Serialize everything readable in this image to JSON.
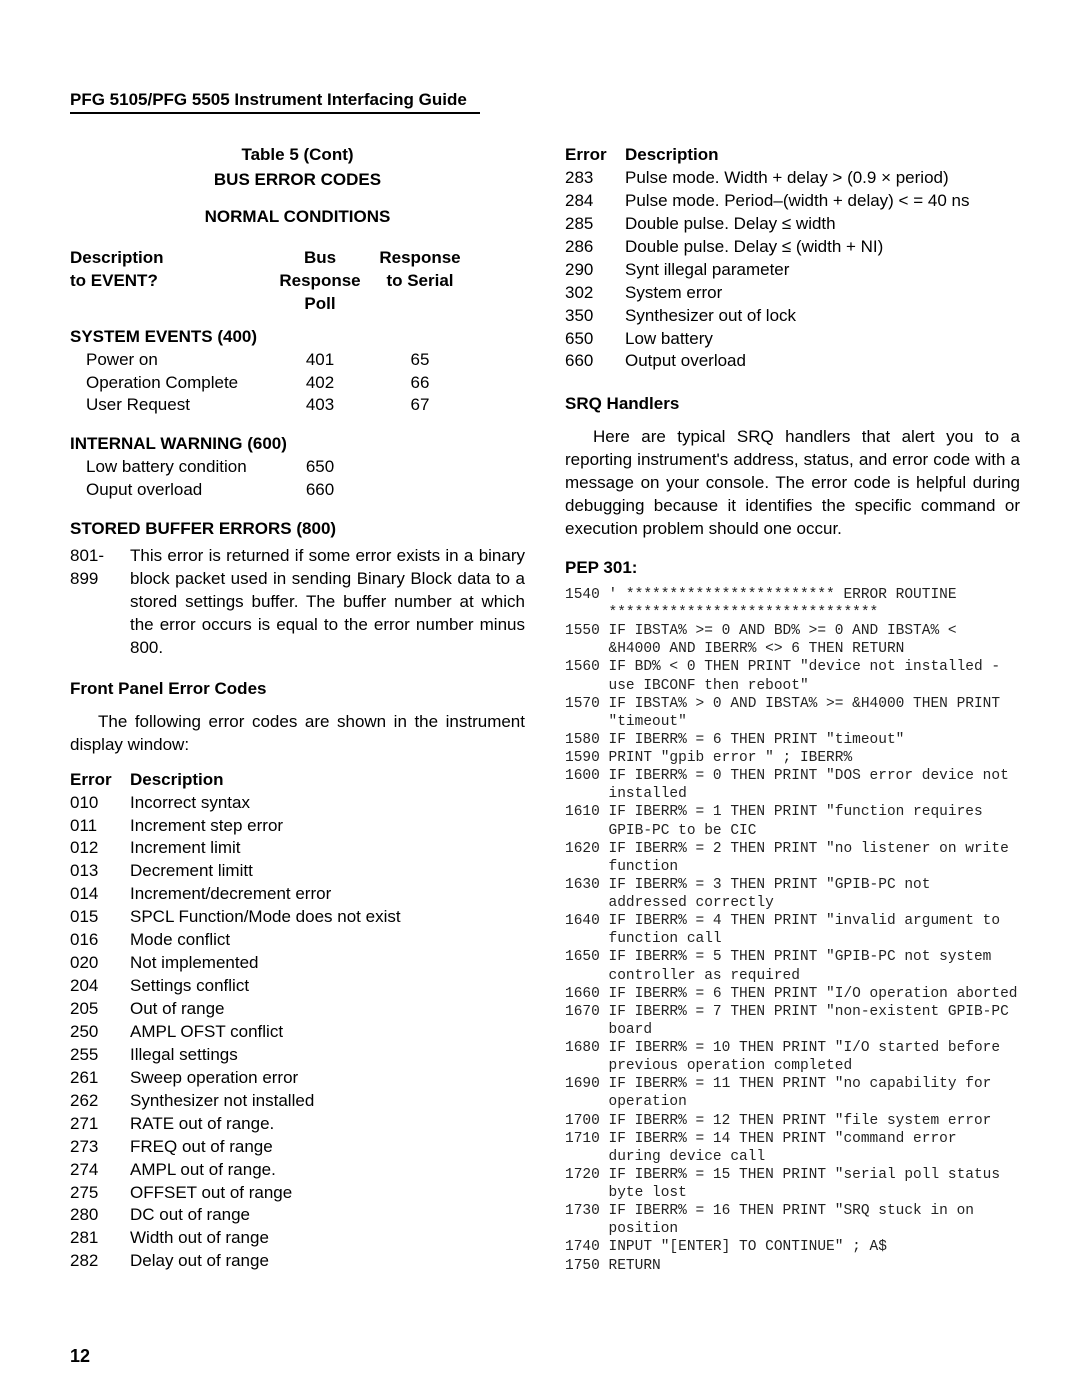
{
  "header": "PFG 5105/PFG 5505 Instrument Interfacing Guide",
  "page_number": "12",
  "left": {
    "table_title1": "Table 5 (Cont)",
    "table_title2": "BUS ERROR CODES",
    "table_title3": "NORMAL CONDITIONS",
    "th1a": "Description",
    "th1b": "to EVENT?",
    "th2a": "Bus",
    "th2b": "Response",
    "th2c": "Poll",
    "th3a": "Response",
    "th3b": "to Serial",
    "sys_events_head": "SYSTEM EVENTS (400)",
    "sys_events": [
      {
        "desc": "Power on",
        "bus": "401",
        "ser": "65"
      },
      {
        "desc": "Operation Complete",
        "bus": "402",
        "ser": "66"
      },
      {
        "desc": "User Request",
        "bus": "403",
        "ser": "67"
      }
    ],
    "int_warn_head": "INTERNAL WARNING (600)",
    "int_warn": [
      {
        "desc": "Low battery condition",
        "bus": "650",
        "ser": ""
      },
      {
        "desc": "Ouput overload",
        "bus": "660",
        "ser": ""
      }
    ],
    "stored_head": "STORED BUFFER ERRORS (800)",
    "stored_code": "801-\n899",
    "stored_text": "This error is returned if some error exists in a binary block packet used in sending Binary Block data to a stored settings buffer. The buffer number at which the error occurs is equal to the error number minus 800.",
    "fpec_head": "Front Panel Error Codes",
    "fpec_para": "The following error codes are shown in the instrument display window:",
    "err_head1": "Error",
    "err_head2": "Description",
    "errors1": [
      {
        "c": "010",
        "d": "Incorrect syntax"
      },
      {
        "c": "011",
        "d": "Increment step error"
      },
      {
        "c": "012",
        "d": "Increment limit"
      },
      {
        "c": "013",
        "d": "Decrement limitt"
      },
      {
        "c": "014",
        "d": "Increment/decrement error"
      },
      {
        "c": "015",
        "d": "SPCL Function/Mode does not exist"
      },
      {
        "c": "016",
        "d": "Mode conflict"
      },
      {
        "c": "020",
        "d": "Not implemented"
      },
      {
        "c": "204",
        "d": "Settings conflict"
      },
      {
        "c": "205",
        "d": "Out of range"
      },
      {
        "c": "250",
        "d": "AMPL OFST conflict"
      },
      {
        "c": "255",
        "d": "Illegal settings"
      },
      {
        "c": "261",
        "d": "Sweep operation error"
      },
      {
        "c": "262",
        "d": "Synthesizer not installed"
      },
      {
        "c": "271",
        "d": "RATE out of range."
      },
      {
        "c": "273",
        "d": "FREQ out of range"
      },
      {
        "c": "274",
        "d": "AMPL out of range."
      },
      {
        "c": "275",
        "d": "OFFSET out of range"
      },
      {
        "c": "280",
        "d": "DC out of range"
      },
      {
        "c": "281",
        "d": "Width out of range"
      },
      {
        "c": "282",
        "d": "Delay out of range"
      }
    ]
  },
  "right": {
    "err_head1": "Error",
    "err_head2": "Description",
    "errors2": [
      {
        "c": "283",
        "d": "Pulse mode. Width + delay > (0.9 × period)"
      },
      {
        "c": "284",
        "d": "Pulse mode. Period–(width + delay) < = 40 ns"
      },
      {
        "c": "285",
        "d": "Double pulse. Delay ≤ width"
      },
      {
        "c": "286",
        "d": "Double pulse. Delay ≤ (width  +  NI)"
      },
      {
        "c": "290",
        "d": "Synt illegal parameter"
      },
      {
        "c": "302",
        "d": "System error"
      },
      {
        "c": "350",
        "d": "Synthesizer out of lock"
      },
      {
        "c": "650",
        "d": "Low battery"
      },
      {
        "c": "660",
        "d": "Output overload"
      }
    ],
    "srq_head": "SRQ Handlers",
    "srq_para": "Here are typical SRQ handlers that alert you to a reporting instrument's address, status, and error code with a message on your console. The error code is helpful during debugging because it identifies the specific command or execution problem should one occur.",
    "pep_head": "PEP 301:",
    "code": "1540 ' ************************ ERROR ROUTINE\n     *******************************\n1550 IF IBSTA% >= 0 AND BD% >= 0 AND IBSTA% <\n     &H4000 AND IBERR% <> 6 THEN RETURN\n1560 IF BD% < 0 THEN PRINT \"device not installed -\n     use IBCONF then reboot\"\n1570 IF IBSTA% > 0 AND IBSTA% >= &H4000 THEN PRINT\n     \"timeout\"\n1580 IF IBERR% = 6 THEN PRINT \"timeout\"\n1590 PRINT \"gpib error \" ; IBERR%\n1600 IF IBERR% = 0 THEN PRINT \"DOS error device not\n     installed\n1610 IF IBERR% = 1 THEN PRINT \"function requires\n     GPIB-PC to be CIC\n1620 IF IBERR% = 2 THEN PRINT \"no listener on write\n     function\n1630 IF IBERR% = 3 THEN PRINT \"GPIB-PC not\n     addressed correctly\n1640 IF IBERR% = 4 THEN PRINT \"invalid argument to\n     function call\n1650 IF IBERR% = 5 THEN PRINT \"GPIB-PC not system\n     controller as required\n1660 IF IBERR% = 6 THEN PRINT \"I/O operation aborted\n1670 IF IBERR% = 7 THEN PRINT \"non-existent GPIB-PC\n     board\n1680 IF IBERR% = 10 THEN PRINT \"I/O started before\n     previous operation completed\n1690 IF IBERR% = 11 THEN PRINT \"no capability for\n     operation\n1700 IF IBERR% = 12 THEN PRINT \"file system error\n1710 IF IBERR% = 14 THEN PRINT \"command error\n     during device call\n1720 IF IBERR% = 15 THEN PRINT \"serial poll status\n     byte lost\n1730 IF IBERR% = 16 THEN PRINT \"SRQ stuck in on\n     position\n1740 INPUT \"[ENTER] TO CONTINUE\" ; A$\n1750 RETURN"
  }
}
